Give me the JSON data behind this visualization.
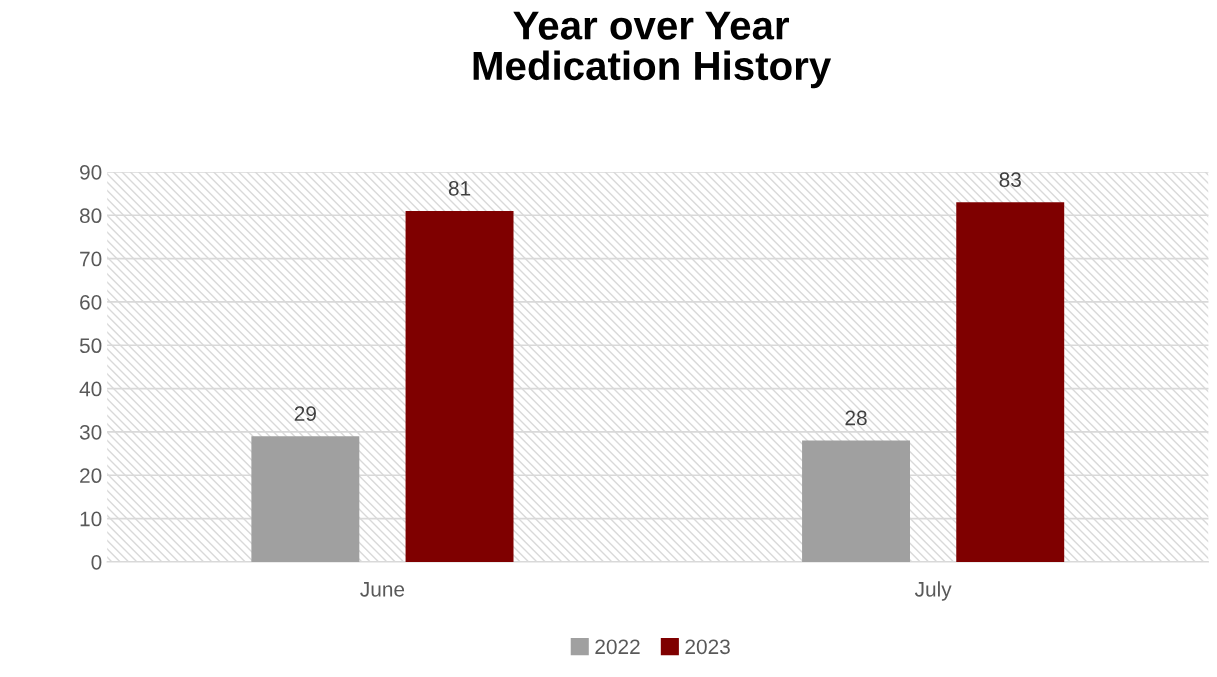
{
  "chart_data": {
    "type": "bar",
    "title": "Year over Year\nMedication History",
    "categories": [
      "June",
      "July"
    ],
    "series": [
      {
        "name": "2022",
        "color": "#a0a0a0",
        "values": [
          29,
          28
        ]
      },
      {
        "name": "2023",
        "color": "#7f0000",
        "values": [
          81,
          83
        ]
      }
    ],
    "ylim": [
      0,
      90
    ],
    "yticks": [
      0,
      10,
      20,
      30,
      40,
      50,
      60,
      70,
      80,
      90
    ],
    "grid": "y",
    "legend": "bottom",
    "data_labels": true
  }
}
